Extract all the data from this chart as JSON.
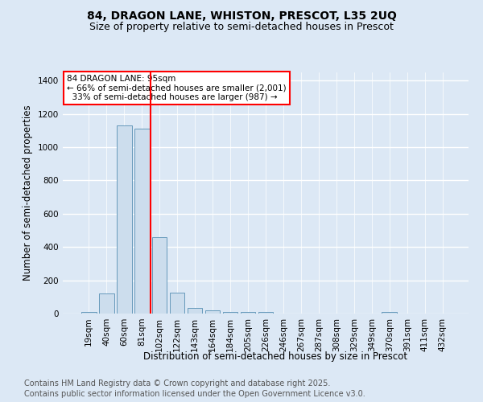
{
  "title1": "84, DRAGON LANE, WHISTON, PRESCOT, L35 2UQ",
  "title2": "Size of property relative to semi-detached houses in Prescot",
  "xlabel": "Distribution of semi-detached houses by size in Prescot",
  "ylabel": "Number of semi-detached properties",
  "footnote1": "Contains HM Land Registry data © Crown copyright and database right 2025.",
  "footnote2": "Contains public sector information licensed under the Open Government Licence v3.0.",
  "categories": [
    "19sqm",
    "40sqm",
    "60sqm",
    "81sqm",
    "102sqm",
    "122sqm",
    "143sqm",
    "164sqm",
    "184sqm",
    "205sqm",
    "226sqm",
    "246sqm",
    "267sqm",
    "287sqm",
    "308sqm",
    "329sqm",
    "349sqm",
    "370sqm",
    "391sqm",
    "411sqm",
    "432sqm"
  ],
  "values": [
    10,
    120,
    1130,
    1110,
    460,
    125,
    35,
    20,
    10,
    10,
    10,
    0,
    0,
    0,
    0,
    0,
    0,
    10,
    0,
    0,
    0
  ],
  "bar_color": "#ccdded",
  "bar_edgecolor": "#6699bb",
  "vline_color": "red",
  "vline_x_index": 3.5,
  "annotation_text": "84 DRAGON LANE: 95sqm\n← 66% of semi-detached houses are smaller (2,001)\n  33% of semi-detached houses are larger (987) →",
  "annotation_box_facecolor": "white",
  "annotation_box_edgecolor": "red",
  "ylim": [
    0,
    1450
  ],
  "yticks": [
    0,
    200,
    400,
    600,
    800,
    1000,
    1200,
    1400
  ],
  "bg_color": "#dce8f5",
  "grid_color": "white",
  "title1_fontsize": 10,
  "title2_fontsize": 9,
  "axis_label_fontsize": 8.5,
  "tick_fontsize": 7.5,
  "footnote_fontsize": 7
}
